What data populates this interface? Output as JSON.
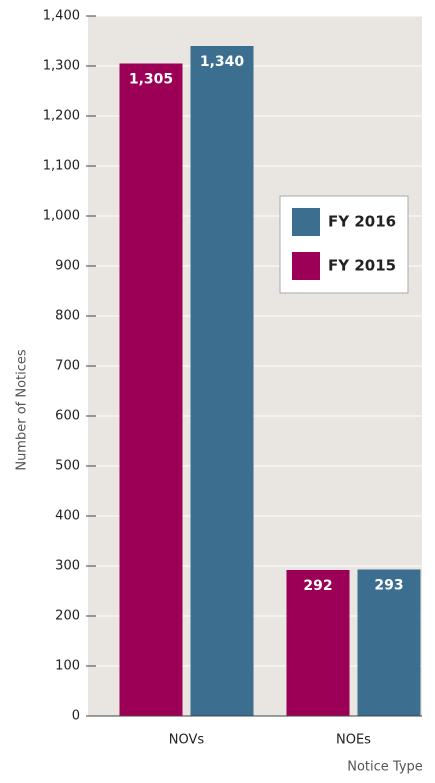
{
  "chart_data": {
    "type": "bar",
    "xlabel": "Notice Type",
    "ylabel": "Number of Notices",
    "categories": [
      "NOVs",
      "NOEs"
    ],
    "series": [
      {
        "name": "FY 2015",
        "color": "#9b0056",
        "values": [
          1305,
          292
        ],
        "value_labels": [
          "1,305",
          "292"
        ]
      },
      {
        "name": "FY 2016",
        "color": "#3b6e8f",
        "values": [
          1340,
          293
        ],
        "value_labels": [
          "1,340",
          "293"
        ]
      }
    ],
    "ylim": [
      0,
      1400
    ],
    "yticks": [
      0,
      100,
      200,
      300,
      400,
      500,
      600,
      700,
      800,
      900,
      {
        "value": 1000,
        "label": "1,000"
      },
      {
        "value": 1100,
        "label": "1,100"
      },
      {
        "value": 1200,
        "label": "1,200"
      },
      {
        "value": 1300,
        "label": "1,300"
      },
      {
        "value": 1400,
        "label": "1,400"
      }
    ],
    "grid": true,
    "legend": "right"
  }
}
